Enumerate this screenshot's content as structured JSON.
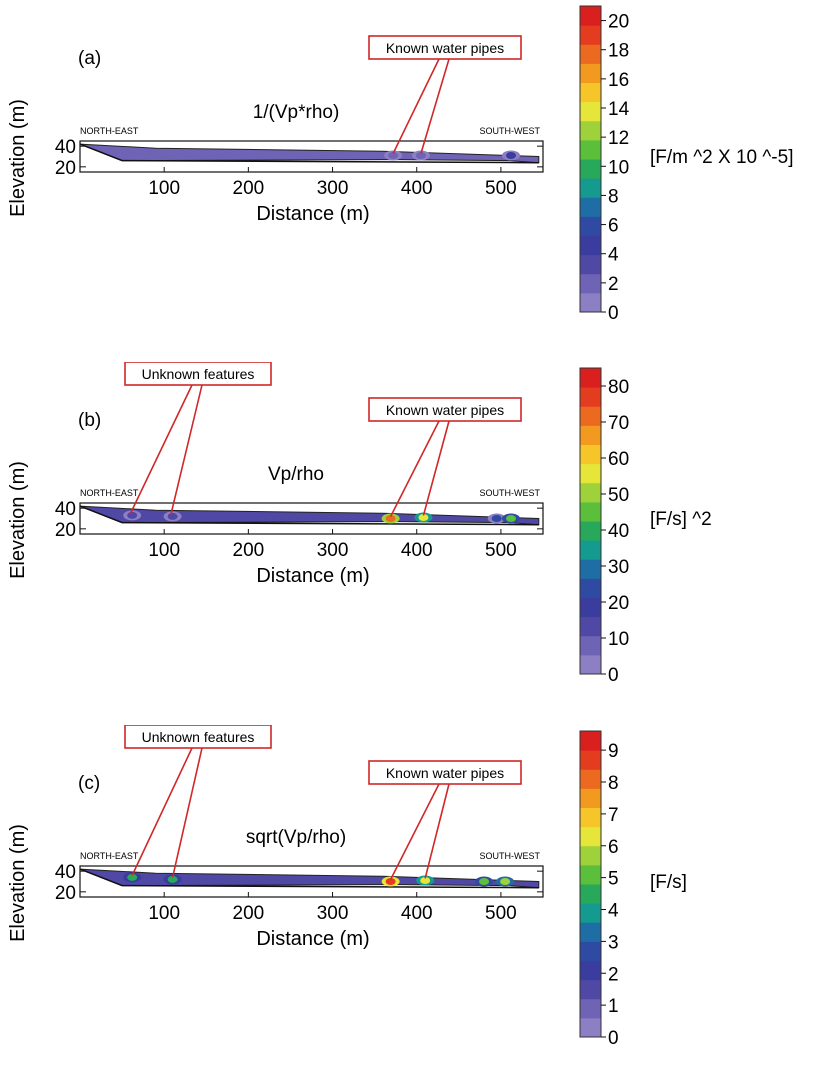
{
  "colorscale": [
    "#8d7fc4",
    "#6f63b6",
    "#5048a5",
    "#3a3c9e",
    "#2f4aa3",
    "#1e6ea5",
    "#149a8e",
    "#28a85a",
    "#5bbf3c",
    "#9fd23a",
    "#e6e53a",
    "#f5c52a",
    "#f2991f",
    "#ec6a1f",
    "#e43c1e",
    "#d9201f"
  ],
  "chart_data": [
    {
      "type": "heatmap",
      "panel_label": "(a)",
      "title": "1/(Vp*rho)",
      "xlabel": "Distance (m)",
      "ylabel": "Elevation (m)",
      "x_ticks": [
        "100",
        "200",
        "300",
        "400",
        "500"
      ],
      "x_tick_values": [
        100,
        200,
        300,
        400,
        500
      ],
      "xlim": [
        0,
        550
      ],
      "y_ticks": [
        "40",
        "20"
      ],
      "y_tick_values": [
        40,
        20
      ],
      "ylim": [
        15,
        45
      ],
      "left_label": "NORTH-EAST",
      "right_label": "SOUTH-WEST",
      "colorbar_ticks": [
        "0",
        "2",
        "4",
        "6",
        "8",
        "10",
        "12",
        "14",
        "16",
        "18",
        "20"
      ],
      "colorbar_min": 0,
      "colorbar_max": 21,
      "colorbar_unit": "[F/m ^2 X 10 ^-5]",
      "callouts": [
        {
          "text": "Known water pipes",
          "targets": [
            [
              372,
              31
            ],
            [
              405,
              31
            ]
          ]
        }
      ],
      "anomalies": [
        {
          "x": 372,
          "y": 31,
          "level": 1
        },
        {
          "x": 405,
          "y": 31,
          "level": 1
        },
        {
          "x": 512,
          "y": 31,
          "level": 3
        }
      ]
    },
    {
      "type": "heatmap",
      "panel_label": "(b)",
      "title": "Vp/rho",
      "xlabel": "Distance (m)",
      "ylabel": "Elevation (m)",
      "x_ticks": [
        "100",
        "200",
        "300",
        "400",
        "500"
      ],
      "x_tick_values": [
        100,
        200,
        300,
        400,
        500
      ],
      "xlim": [
        0,
        550
      ],
      "y_ticks": [
        "40",
        "20"
      ],
      "y_tick_values": [
        40,
        20
      ],
      "ylim": [
        15,
        45
      ],
      "left_label": "NORTH-EAST",
      "right_label": "SOUTH-WEST",
      "colorbar_ticks": [
        "0",
        "10",
        "20",
        "30",
        "40",
        "50",
        "60",
        "70",
        "80"
      ],
      "colorbar_min": 0,
      "colorbar_max": 85,
      "colorbar_unit": "[F/s] ^2",
      "callouts": [
        {
          "text": "Unknown features",
          "targets": [
            [
              60,
              33
            ],
            [
              108,
              32
            ]
          ]
        },
        {
          "text": "Known water pipes",
          "targets": [
            [
              369,
              30
            ],
            [
              408,
              31
            ]
          ]
        }
      ],
      "anomalies": [
        {
          "x": 62,
          "y": 33,
          "level": 2
        },
        {
          "x": 110,
          "y": 32,
          "level": 2
        },
        {
          "x": 369,
          "y": 30,
          "level": 13
        },
        {
          "x": 408,
          "y": 31,
          "level": 10
        },
        {
          "x": 495,
          "y": 30,
          "level": 4
        },
        {
          "x": 512,
          "y": 30,
          "level": 8
        }
      ]
    },
    {
      "type": "heatmap",
      "panel_label": "(c)",
      "title": "sqrt(Vp/rho)",
      "xlabel": "Distance (m)",
      "ylabel": "Elevation (m)",
      "x_ticks": [
        "100",
        "200",
        "300",
        "400",
        "500"
      ],
      "x_tick_values": [
        100,
        200,
        300,
        400,
        500
      ],
      "xlim": [
        0,
        550
      ],
      "y_ticks": [
        "40",
        "20"
      ],
      "y_tick_values": [
        40,
        20
      ],
      "ylim": [
        15,
        45
      ],
      "left_label": "NORTH-EAST",
      "right_label": "SOUTH-WEST",
      "colorbar_ticks": [
        "0",
        "1",
        "2",
        "3",
        "4",
        "5",
        "6",
        "7",
        "8",
        "9"
      ],
      "colorbar_min": 0,
      "colorbar_max": 9.6,
      "colorbar_unit": "[F/s]",
      "callouts": [
        {
          "text": "Unknown features",
          "targets": [
            [
              62,
              34
            ],
            [
              110,
              32
            ]
          ]
        },
        {
          "text": "Known water pipes",
          "targets": [
            [
              369,
              30
            ],
            [
              410,
              31
            ]
          ]
        }
      ],
      "anomalies": [
        {
          "x": 62,
          "y": 34,
          "level": 7
        },
        {
          "x": 110,
          "y": 32,
          "level": 7
        },
        {
          "x": 369,
          "y": 30,
          "level": 14
        },
        {
          "x": 410,
          "y": 31,
          "level": 10
        },
        {
          "x": 480,
          "y": 30,
          "level": 8
        },
        {
          "x": 505,
          "y": 30,
          "level": 9
        }
      ]
    }
  ]
}
